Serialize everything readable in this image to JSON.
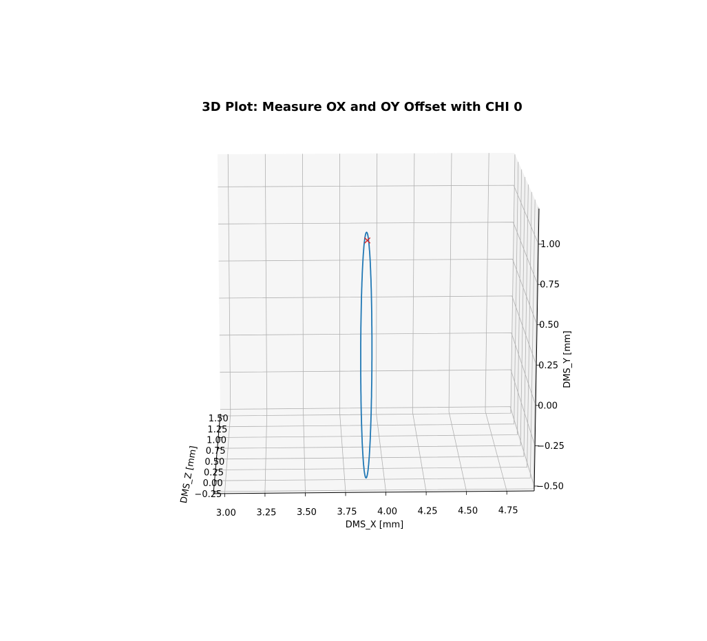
{
  "chart_data": {
    "type": "line",
    "projection": "3d",
    "title": "3D Plot: Measure OX and OY Offset with CHI 0",
    "xlabel": "DMS_X [mm]",
    "ylabel": "DMS_Y [mm]",
    "zlabel": "DMS_Z [mm]",
    "x_ticks": [
      "3.00",
      "3.25",
      "3.50",
      "3.75",
      "4.00",
      "4.25",
      "4.50",
      "4.75"
    ],
    "y_ticks": [
      "−0.50",
      "−0.25",
      "0.00",
      "0.25",
      "0.50",
      "0.75",
      "1.00"
    ],
    "z_ticks": [
      "−0.25",
      "0.00",
      "0.25",
      "0.50",
      "0.75",
      "1.00",
      "1.25",
      "1.50"
    ],
    "xlim": [
      2.93,
      4.92
    ],
    "ylim": [
      -0.53,
      1.22
    ],
    "zlim": [
      -0.3,
      1.55
    ],
    "grid": true,
    "series": [
      {
        "kind": "line",
        "color": "#1f77b4",
        "shape": "ellipse",
        "center": {
          "x": 3.885,
          "y": 0.31,
          "z": 0.0
        },
        "semi_axis_x": 0.035,
        "semi_axis_y": 0.83
      },
      {
        "kind": "marker",
        "marker": "x",
        "color": "#d62728",
        "x": 3.89,
        "y": 1.085,
        "z": 0.0
      }
    ]
  }
}
